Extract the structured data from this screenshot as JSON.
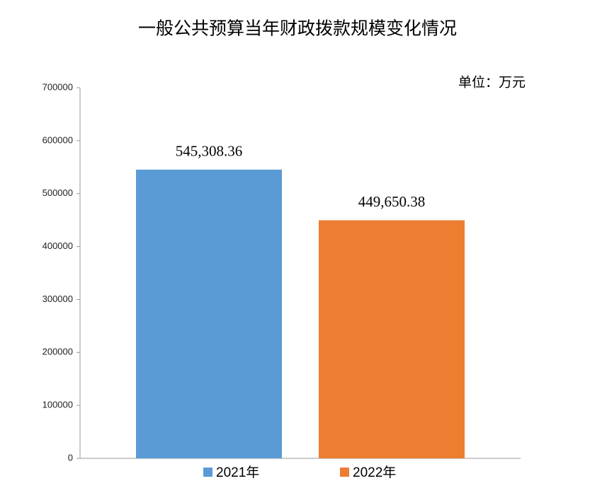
{
  "chart_data": {
    "type": "bar",
    "title": "一般公共预算当年财政拨款规模变化情况",
    "annotation": "单位：万元",
    "categories": [
      null
    ],
    "series": [
      {
        "name": "2021年",
        "color": "#5b9bd5",
        "values": [
          545308.36
        ],
        "value_labels": [
          "545,308.36"
        ]
      },
      {
        "name": "2022年",
        "color": "#ed7d31",
        "values": [
          449650.38
        ],
        "value_labels": [
          "449,650.38"
        ]
      }
    ],
    "ylim": [
      0,
      700000
    ],
    "yticks": [
      0,
      100000,
      200000,
      300000,
      400000,
      500000,
      600000,
      700000
    ],
    "legend": "bottom"
  }
}
